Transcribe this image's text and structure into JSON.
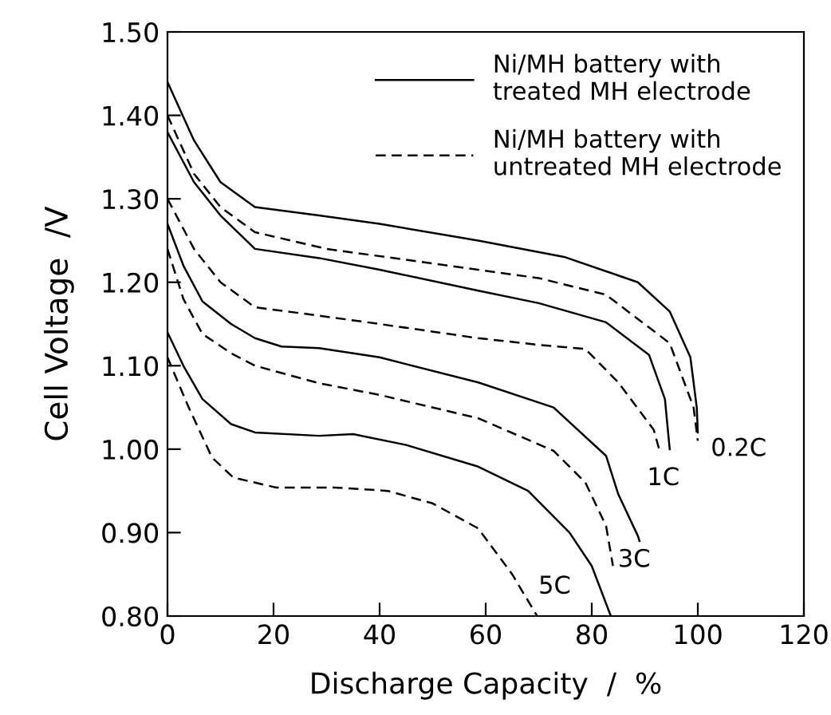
{
  "chart_data": {
    "type": "line",
    "xlabel": "Discharge Capacity  /  %",
    "ylabel": "Cell Voltage  /V",
    "xlim": [
      0,
      120
    ],
    "ylim": [
      0.8,
      1.5
    ],
    "xticks": [
      0,
      20,
      40,
      60,
      80,
      100,
      120
    ],
    "yticks": [
      {
        "value": 0.8,
        "label": "0.80"
      },
      {
        "value": 0.9,
        "label": "0.90"
      },
      {
        "value": 1.0,
        "label": "1.00"
      },
      {
        "value": 1.1,
        "label": "1.10"
      },
      {
        "value": 1.2,
        "label": "1.20"
      },
      {
        "value": 1.3,
        "label": "1.30"
      },
      {
        "value": 1.4,
        "label": "1.40"
      },
      {
        "value": 1.5,
        "label": "1.50"
      }
    ],
    "grid": false,
    "legend": "top right",
    "marker": "none",
    "series": [
      {
        "name": "Ni/MH battery with\ntreated MH electrode",
        "color": "#000000",
        "line_style": "solid",
        "x": [
          0,
          5,
          10,
          16.5,
          28.6,
          40,
          58.6,
          75,
          88.7,
          94.7,
          98.6,
          99.8,
          100
        ],
        "values": [
          1.44,
          1.37,
          1.32,
          1.29,
          1.28,
          1.27,
          1.25,
          1.23,
          1.2,
          1.165,
          1.11,
          1.05,
          1.02
        ]
      },
      {
        "name": "Ni/MH battery with\nuntreated MH electrode",
        "color": "#000000",
        "line_style": "dashed",
        "x": [
          0,
          5,
          10,
          16.5,
          30,
          58.6,
          70,
          82.7,
          94.7,
          99.2,
          100
        ],
        "values": [
          1.4,
          1.33,
          1.29,
          1.26,
          1.24,
          1.215,
          1.205,
          1.185,
          1.127,
          1.05,
          1.01
        ]
      },
      {
        "color": "#000000",
        "line_style": "solid",
        "x": [
          0,
          5,
          10,
          16.5,
          28.6,
          40,
          58.6,
          70,
          82.7,
          90.8,
          93.8,
          94.7
        ],
        "values": [
          1.38,
          1.32,
          1.28,
          1.24,
          1.229,
          1.215,
          1.19,
          1.175,
          1.152,
          1.113,
          1.06,
          1.0
        ]
      },
      {
        "color": "#000000",
        "line_style": "dashed",
        "x": [
          0,
          5,
          10,
          16.5,
          28.6,
          40,
          58.6,
          70,
          78.8,
          85,
          91.7,
          92.7
        ],
        "values": [
          1.3,
          1.24,
          1.2,
          1.17,
          1.16,
          1.15,
          1.133,
          1.125,
          1.12,
          1.08,
          1.023,
          1.0
        ]
      },
      {
        "color": "#000000",
        "line_style": "solid",
        "x": [
          0,
          3,
          6.6,
          12,
          16.5,
          21.5,
          28.6,
          40,
          58.6,
          72.8,
          82.7,
          85,
          88.7,
          89
        ],
        "values": [
          1.27,
          1.22,
          1.177,
          1.15,
          1.133,
          1.123,
          1.121,
          1.11,
          1.08,
          1.05,
          0.992,
          0.946,
          0.896,
          0.89
        ]
      },
      {
        "color": "#000000",
        "line_style": "dashed",
        "x": [
          0,
          3,
          6.6,
          12,
          16.5,
          28.6,
          40,
          58.6,
          72.8,
          78.8,
          82.7,
          84
        ],
        "values": [
          1.24,
          1.18,
          1.138,
          1.115,
          1.1,
          1.079,
          1.065,
          1.037,
          0.998,
          0.96,
          0.908,
          0.86
        ]
      },
      {
        "color": "#000000",
        "line_style": "solid",
        "x": [
          0,
          3,
          6.6,
          12,
          16.5,
          28.6,
          35,
          45,
          58.6,
          68,
          75.8,
          80,
          83.6
        ],
        "values": [
          1.14,
          1.1,
          1.06,
          1.03,
          1.02,
          1.016,
          1.018,
          1.005,
          0.979,
          0.95,
          0.9,
          0.86,
          0.8
        ]
      },
      {
        "color": "#000000",
        "line_style": "dashed",
        "x": [
          0,
          4,
          8.4,
          12.4,
          20.5,
          31.5,
          41.5,
          50,
          58.6,
          65,
          69.7
        ],
        "values": [
          1.11,
          1.05,
          0.99,
          0.966,
          0.954,
          0.954,
          0.95,
          0.935,
          0.905,
          0.85,
          0.8
        ]
      }
    ],
    "annotations": [
      "0.2C",
      "1C",
      "3C",
      "5C"
    ]
  }
}
